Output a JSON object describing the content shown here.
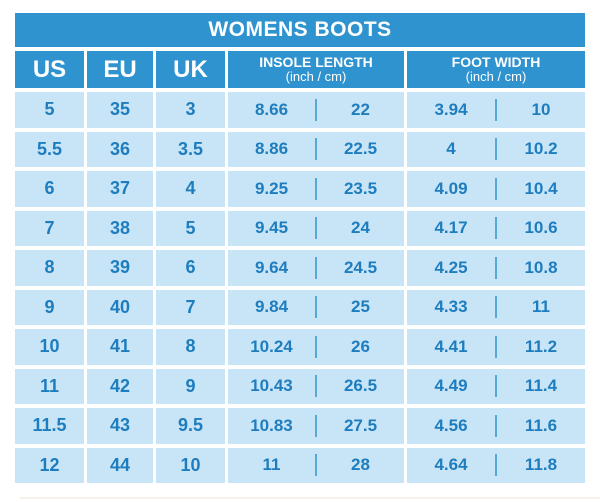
{
  "title": "WOMENS BOOTS",
  "colors": {
    "header_blue": "#2E93CE",
    "cell_blue": "#C8E5F7",
    "text_blue": "#1E7DBE",
    "divider_blue": "#55A9D9",
    "background": "#FFFFFF",
    "faint_line": "#F6F2E7"
  },
  "table": {
    "columns": [
      {
        "key": "us",
        "label": "US"
      },
      {
        "key": "eu",
        "label": "EU"
      },
      {
        "key": "uk",
        "label": "UK"
      },
      {
        "key": "insole",
        "label": "INSOLE LENGTH",
        "sublabel": "(inch / cm)"
      },
      {
        "key": "width",
        "label": "FOOT WIDTH",
        "sublabel": "(inch / cm)"
      }
    ],
    "rows": [
      {
        "us": "5",
        "eu": "35",
        "uk": "3",
        "insole_inch": "8.66",
        "insole_cm": "22",
        "width_inch": "3.94",
        "width_cm": "10"
      },
      {
        "us": "5.5",
        "eu": "36",
        "uk": "3.5",
        "insole_inch": "8.86",
        "insole_cm": "22.5",
        "width_inch": "4",
        "width_cm": "10.2"
      },
      {
        "us": "6",
        "eu": "37",
        "uk": "4",
        "insole_inch": "9.25",
        "insole_cm": "23.5",
        "width_inch": "4.09",
        "width_cm": "10.4"
      },
      {
        "us": "7",
        "eu": "38",
        "uk": "5",
        "insole_inch": "9.45",
        "insole_cm": "24",
        "width_inch": "4.17",
        "width_cm": "10.6"
      },
      {
        "us": "8",
        "eu": "39",
        "uk": "6",
        "insole_inch": "9.64",
        "insole_cm": "24.5",
        "width_inch": "4.25",
        "width_cm": "10.8"
      },
      {
        "us": "9",
        "eu": "40",
        "uk": "7",
        "insole_inch": "9.84",
        "insole_cm": "25",
        "width_inch": "4.33",
        "width_cm": "11"
      },
      {
        "us": "10",
        "eu": "41",
        "uk": "8",
        "insole_inch": "10.24",
        "insole_cm": "26",
        "width_inch": "4.41",
        "width_cm": "11.2"
      },
      {
        "us": "11",
        "eu": "42",
        "uk": "9",
        "insole_inch": "10.43",
        "insole_cm": "26.5",
        "width_inch": "4.49",
        "width_cm": "11.4"
      },
      {
        "us": "11.5",
        "eu": "43",
        "uk": "9.5",
        "insole_inch": "10.83",
        "insole_cm": "27.5",
        "width_inch": "4.56",
        "width_cm": "11.6"
      },
      {
        "us": "12",
        "eu": "44",
        "uk": "10",
        "insole_inch": "11",
        "insole_cm": "28",
        "width_inch": "4.64",
        "width_cm": "11.8"
      }
    ]
  }
}
